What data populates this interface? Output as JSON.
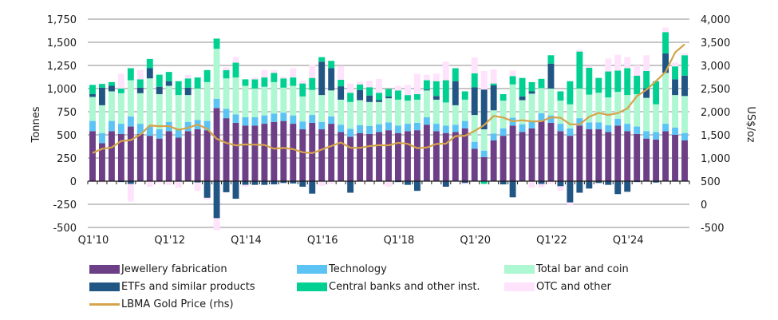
{
  "chart_data": {
    "type": "bar",
    "stacked": true,
    "title": "",
    "ylabel": "Tonnes",
    "y2label": "US$/oz",
    "ylim": [
      -500,
      1750
    ],
    "y2lim": [
      -500,
      4000
    ],
    "yticks": [
      "1,750",
      "1,500",
      "1,250",
      "1,000",
      "750",
      "500",
      "250",
      "0",
      "-250",
      "-500"
    ],
    "yticks_values": [
      1750,
      1500,
      1250,
      1000,
      750,
      500,
      250,
      0,
      -250,
      -500
    ],
    "y2ticks": [
      "4,000",
      "3,500",
      "3,000",
      "2,500",
      "2,000",
      "1,500",
      "1,000",
      "500",
      "0",
      "-500"
    ],
    "y2ticks_values": [
      4000,
      3500,
      3000,
      2500,
      2000,
      1500,
      1000,
      500,
      0,
      -500
    ],
    "xtick_labels": [
      "Q1'10",
      "Q1'12",
      "Q1'14",
      "Q1'16",
      "Q1'18",
      "Q1'20",
      "Q1'22",
      "Q1'24"
    ],
    "xtick_indices": [
      0,
      8,
      16,
      24,
      32,
      40,
      48,
      56
    ],
    "grid": true,
    "legend_position": "bottom",
    "categories": [
      "Q1'10",
      "Q2'10",
      "Q3'10",
      "Q4'10",
      "Q1'11",
      "Q2'11",
      "Q3'11",
      "Q4'11",
      "Q1'12",
      "Q2'12",
      "Q3'12",
      "Q4'12",
      "Q1'13",
      "Q2'13",
      "Q3'13",
      "Q4'13",
      "Q1'14",
      "Q2'14",
      "Q3'14",
      "Q4'14",
      "Q1'15",
      "Q2'15",
      "Q3'15",
      "Q4'15",
      "Q1'16",
      "Q2'16",
      "Q3'16",
      "Q4'16",
      "Q1'17",
      "Q2'17",
      "Q3'17",
      "Q4'17",
      "Q1'18",
      "Q2'18",
      "Q3'18",
      "Q4'18",
      "Q1'19",
      "Q2'19",
      "Q3'19",
      "Q4'19",
      "Q1'20",
      "Q2'20",
      "Q3'20",
      "Q4'20",
      "Q1'21",
      "Q2'21",
      "Q3'21",
      "Q4'21",
      "Q1'22",
      "Q2'22",
      "Q3'22",
      "Q4'22",
      "Q1'23",
      "Q2'23",
      "Q3'23",
      "Q4'23",
      "Q1'24",
      "Q2'24",
      "Q3'24",
      "Q4'24",
      "Q1'25",
      "Q2'25",
      "Q3'25"
    ],
    "series": [
      {
        "name": "Jewellery fabrication",
        "color": "#6c3f87",
        "values": [
          540,
          410,
          540,
          510,
          590,
          510,
          490,
          460,
          540,
          470,
          540,
          560,
          550,
          790,
          680,
          630,
          600,
          600,
          620,
          640,
          650,
          620,
          560,
          630,
          560,
          620,
          530,
          480,
          520,
          510,
          530,
          550,
          520,
          540,
          550,
          610,
          540,
          520,
          530,
          570,
          350,
          260,
          440,
          490,
          600,
          530,
          570,
          650,
          630,
          540,
          490,
          600,
          560,
          560,
          530,
          600,
          540,
          510,
          460,
          450,
          540,
          500,
          440
        ],
        "display": "bars"
      },
      {
        "name": "Technology",
        "color": "#5bc4f5",
        "values": [
          110,
          110,
          110,
          110,
          110,
          110,
          100,
          100,
          100,
          100,
          100,
          100,
          100,
          100,
          100,
          90,
          90,
          90,
          90,
          90,
          90,
          90,
          85,
          85,
          80,
          80,
          80,
          85,
          85,
          85,
          85,
          85,
          80,
          80,
          80,
          80,
          80,
          80,
          80,
          80,
          75,
          70,
          75,
          80,
          85,
          85,
          85,
          85,
          80,
          80,
          80,
          80,
          75,
          75,
          75,
          75,
          80,
          80,
          80,
          80,
          80,
          80,
          80
        ],
        "display": "bars"
      },
      {
        "name": "Total bar and coin",
        "color": "#adf7d2",
        "values": [
          260,
          300,
          320,
          330,
          390,
          330,
          520,
          380,
          390,
          360,
          290,
          340,
          420,
          540,
          330,
          400,
          340,
          310,
          310,
          340,
          270,
          320,
          270,
          270,
          290,
          280,
          270,
          290,
          270,
          260,
          240,
          260,
          280,
          250,
          250,
          290,
          260,
          250,
          210,
          230,
          290,
          230,
          250,
          300,
          360,
          260,
          290,
          270,
          290,
          250,
          260,
          320,
          300,
          320,
          300,
          290,
          310,
          350,
          360,
          300,
          550,
          350,
          400
        ],
        "display": "bars"
      },
      {
        "name": "ETFs and similar products",
        "color": "#215584",
        "values": [
          30,
          190,
          60,
          -10,
          -30,
          60,
          110,
          80,
          50,
          0,
          80,
          -15,
          -180,
          -400,
          -120,
          -190,
          -40,
          -40,
          -40,
          -35,
          -20,
          -25,
          -60,
          -135,
          360,
          240,
          145,
          -125,
          110,
          70,
          20,
          20,
          -10,
          -40,
          -105,
          10,
          40,
          -60,
          260,
          -20,
          300,
          430,
          270,
          -35,
          -175,
          40,
          25,
          -30,
          270,
          -55,
          -230,
          -125,
          -80,
          -20,
          -40,
          -140,
          -115,
          -10,
          100,
          -15,
          210,
          170,
          220
        ],
        "display": "bars"
      },
      {
        "name": "Central banks and other inst.",
        "color": "#00d092",
        "values": [
          100,
          40,
          40,
          50,
          130,
          90,
          100,
          130,
          100,
          150,
          100,
          120,
          130,
          110,
          90,
          160,
          70,
          100,
          100,
          100,
          100,
          90,
          140,
          130,
          50,
          80,
          70,
          100,
          60,
          90,
          80,
          80,
          100,
          60,
          60,
          100,
          160,
          240,
          140,
          90,
          150,
          -30,
          20,
          70,
          90,
          200,
          100,
          100,
          90,
          100,
          250,
          400,
          290,
          160,
          280,
          230,
          290,
          200,
          190,
          250,
          230,
          140,
          220
        ],
        "display": "bars"
      },
      {
        "name": "OTC and other",
        "color": "#ffe2fb",
        "values": [
          -10,
          -20,
          -10,
          160,
          -190,
          100,
          -60,
          -20,
          -40,
          -70,
          40,
          -90,
          -20,
          -130,
          30,
          60,
          -20,
          20,
          80,
          30,
          20,
          100,
          30,
          140,
          -50,
          -30,
          150,
          100,
          30,
          70,
          150,
          -60,
          50,
          110,
          220,
          60,
          80,
          200,
          0,
          -15,
          170,
          200,
          150,
          0,
          60,
          0,
          -70,
          -35,
          -30,
          -50,
          -30,
          20,
          20,
          0,
          140,
          170,
          120,
          110,
          170,
          0,
          50,
          40,
          20
        ],
        "display": "bars"
      },
      {
        "name": "LBMA Gold Price (rhs)",
        "color": "#d4a44a",
        "axis": "right",
        "values": [
          1109,
          1197,
          1227,
          1367,
          1386,
          1506,
          1702,
          1688,
          1691,
          1609,
          1652,
          1722,
          1632,
          1415,
          1326,
          1272,
          1293,
          1288,
          1282,
          1201,
          1218,
          1192,
          1124,
          1106,
          1183,
          1260,
          1335,
          1222,
          1219,
          1257,
          1278,
          1275,
          1329,
          1306,
          1213,
          1226,
          1304,
          1310,
          1472,
          1481,
          1583,
          1711,
          1909,
          1874,
          1794,
          1816,
          1789,
          1795,
          1877,
          1871,
          1729,
          1726,
          1890,
          1976,
          1929,
          1971,
          2070,
          2338,
          2474,
          2663,
          2860,
          3280,
          3457
        ],
        "display": "line"
      }
    ]
  },
  "legend": {
    "items": [
      {
        "label": "Jewellery fabrication",
        "color": "#6c3f87",
        "kind": "box"
      },
      {
        "label": "Technology",
        "color": "#5bc4f5",
        "kind": "box"
      },
      {
        "label": "Total bar and coin",
        "color": "#adf7d2",
        "kind": "box"
      },
      {
        "label": "ETFs and similar products",
        "color": "#215584",
        "kind": "box"
      },
      {
        "label": "Central banks and other inst.",
        "color": "#00d092",
        "kind": "box"
      },
      {
        "label": "OTC and other",
        "color": "#ffe2fb",
        "kind": "box"
      },
      {
        "label": "LBMA Gold Price (rhs)",
        "color": "#d4a44a",
        "kind": "line"
      }
    ]
  }
}
